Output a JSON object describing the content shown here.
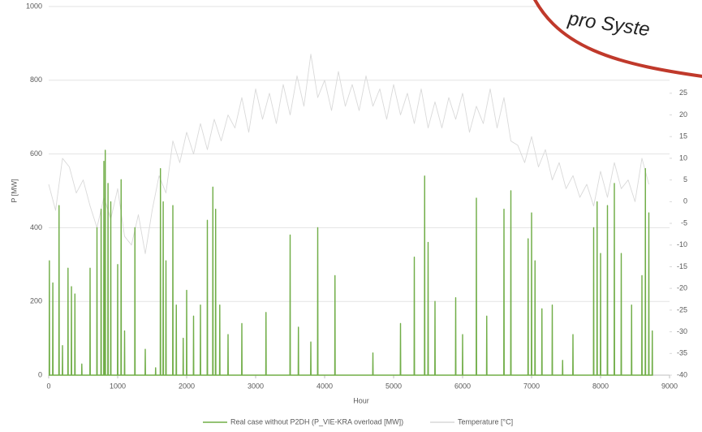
{
  "chart_data": {
    "type": "line",
    "callout": "pro Syste",
    "xlabel": "Hour",
    "ylabel": "P [MW]",
    "xlim": [
      0,
      9000
    ],
    "xticks": [
      0,
      1000,
      2000,
      3000,
      4000,
      5000,
      6000,
      7000,
      8000,
      9000
    ],
    "ylim": [
      0,
      1000
    ],
    "yticks": [
      0,
      200,
      400,
      600,
      800,
      1000
    ],
    "y2lim": [
      -40,
      45
    ],
    "y2ticks": [
      -40,
      -35,
      -30,
      -25,
      -20,
      -15,
      -10,
      -5,
      0,
      5,
      10,
      15,
      20,
      25
    ],
    "grid": true,
    "legend": "bottom",
    "series": [
      {
        "name": "Real case without P2DH (P_VIE-KRA overload [MW])",
        "color": "#70ad47",
        "x": [
          0,
          7,
          10,
          13,
          57,
          60,
          63,
          147,
          150,
          153,
          197,
          200,
          203,
          277,
          280,
          283,
          327,
          330,
          333,
          377,
          380,
          383,
          477,
          480,
          483,
          597,
          600,
          603,
          697,
          700,
          703,
          757,
          760,
          763,
          797,
          800,
          803,
          817,
          820,
          823,
          857,
          860,
          863,
          897,
          900,
          903,
          997,
          1000,
          1003,
          1047,
          1050,
          1053,
          1097,
          1100,
          1103,
          1247,
          1250,
          1253,
          1397,
          1400,
          1403,
          1547,
          1550,
          1553,
          1617,
          1620,
          1623,
          1657,
          1660,
          1663,
          1697,
          1700,
          1703,
          1797,
          1800,
          1803,
          1847,
          1850,
          1853,
          1947,
          1950,
          1953,
          1997,
          2000,
          2003,
          2097,
          2100,
          2103,
          2197,
          2200,
          2203,
          2297,
          2300,
          2303,
          2377,
          2380,
          2383,
          2417,
          2420,
          2423,
          2477,
          2480,
          2483,
          2597,
          2600,
          2603,
          2797,
          2800,
          2803,
          3147,
          3150,
          3153,
          3497,
          3500,
          3503,
          3617,
          3620,
          3623,
          3797,
          3800,
          3803,
          3897,
          3900,
          3903,
          4147,
          4150,
          4153,
          4697,
          4700,
          4703,
          5097,
          5100,
          5103,
          5297,
          5300,
          5303,
          5447,
          5450,
          5453,
          5497,
          5500,
          5503,
          5597,
          5600,
          5603,
          5897,
          5900,
          5903,
          5997,
          6000,
          6003,
          6197,
          6200,
          6203,
          6347,
          6350,
          6353,
          6597,
          6600,
          6603,
          6697,
          6700,
          6703,
          6947,
          6950,
          6953,
          6997,
          7000,
          7003,
          7047,
          7050,
          7053,
          7147,
          7150,
          7153,
          7297,
          7300,
          7303,
          7447,
          7450,
          7453,
          7597,
          7600,
          7603,
          7897,
          7900,
          7903,
          7947,
          7950,
          7953,
          7997,
          8000,
          8003,
          8097,
          8100,
          8103,
          8197,
          8200,
          8203,
          8297,
          8300,
          8303,
          8447,
          8450,
          8453,
          8597,
          8600,
          8603,
          8647,
          8650,
          8653,
          8697,
          8700,
          8703,
          8747,
          8750,
          8753,
          8760
        ],
        "values": [
          0,
          0,
          310,
          0,
          0,
          250,
          0,
          0,
          460,
          0,
          0,
          80,
          0,
          0,
          290,
          0,
          0,
          240,
          0,
          0,
          220,
          0,
          0,
          30,
          0,
          0,
          290,
          0,
          0,
          400,
          0,
          0,
          450,
          0,
          0,
          580,
          0,
          0,
          610,
          0,
          0,
          520,
          0,
          0,
          470,
          0,
          0,
          300,
          0,
          0,
          530,
          0,
          0,
          120,
          0,
          0,
          400,
          0,
          0,
          70,
          0,
          0,
          20,
          0,
          0,
          560,
          0,
          0,
          470,
          0,
          0,
          310,
          0,
          0,
          460,
          0,
          0,
          190,
          0,
          0,
          100,
          0,
          0,
          230,
          0,
          0,
          160,
          0,
          0,
          190,
          0,
          0,
          420,
          0,
          0,
          510,
          0,
          0,
          450,
          0,
          0,
          190,
          0,
          0,
          110,
          0,
          0,
          140,
          0,
          0,
          170,
          0,
          0,
          380,
          0,
          0,
          130,
          0,
          0,
          90,
          0,
          0,
          400,
          0,
          0,
          270,
          0,
          0,
          60,
          0,
          0,
          140,
          0,
          0,
          320,
          0,
          0,
          540,
          0,
          0,
          360,
          0,
          0,
          200,
          0,
          0,
          210,
          0,
          0,
          110,
          0,
          0,
          480,
          0,
          0,
          160,
          0,
          0,
          450,
          0,
          0,
          500,
          0,
          0,
          370,
          0,
          0,
          440,
          0,
          0,
          310,
          0,
          0,
          180,
          0,
          0,
          190,
          0,
          0,
          40,
          0,
          0,
          110,
          0,
          0,
          400,
          0,
          0,
          470,
          0,
          0,
          330,
          0,
          0,
          460,
          0,
          0,
          520,
          0,
          0,
          330,
          0,
          0,
          190,
          0,
          0,
          270,
          0,
          0,
          560,
          0,
          0,
          440,
          0,
          0,
          120,
          0,
          0
        ]
      },
      {
        "name": "Temperature [°C]",
        "color": "#d9d9d9",
        "axis": "y2",
        "x": [
          0,
          100,
          200,
          300,
          400,
          500,
          600,
          700,
          800,
          900,
          1000,
          1100,
          1200,
          1300,
          1400,
          1500,
          1600,
          1700,
          1800,
          1900,
          2000,
          2100,
          2200,
          2300,
          2400,
          2500,
          2600,
          2700,
          2800,
          2900,
          3000,
          3100,
          3200,
          3300,
          3400,
          3500,
          3600,
          3700,
          3800,
          3900,
          4000,
          4100,
          4200,
          4300,
          4400,
          4500,
          4600,
          4700,
          4800,
          4900,
          5000,
          5100,
          5200,
          5300,
          5400,
          5500,
          5600,
          5700,
          5800,
          5900,
          6000,
          6100,
          6200,
          6300,
          6400,
          6500,
          6600,
          6700,
          6800,
          6900,
          7000,
          7100,
          7200,
          7300,
          7400,
          7500,
          7600,
          7700,
          7800,
          7900,
          8000,
          8100,
          8200,
          8300,
          8400,
          8500,
          8600,
          8700
        ],
        "values": [
          4,
          -2,
          10,
          8,
          2,
          5,
          -1,
          -6,
          1,
          -4,
          3,
          -8,
          -10,
          -3,
          -12,
          -2,
          6,
          2,
          14,
          9,
          16,
          11,
          18,
          12,
          19,
          14,
          20,
          17,
          24,
          16,
          26,
          19,
          25,
          18,
          27,
          20,
          29,
          22,
          34,
          24,
          28,
          21,
          30,
          22,
          27,
          21,
          29,
          22,
          26,
          19,
          27,
          20,
          25,
          18,
          26,
          17,
          23,
          17,
          24,
          19,
          25,
          16,
          22,
          18,
          26,
          17,
          24,
          14,
          13,
          9,
          15,
          8,
          12,
          5,
          9,
          3,
          6,
          1,
          4,
          -1,
          7,
          1,
          9,
          3,
          5,
          0,
          10,
          4
        ]
      }
    ]
  }
}
